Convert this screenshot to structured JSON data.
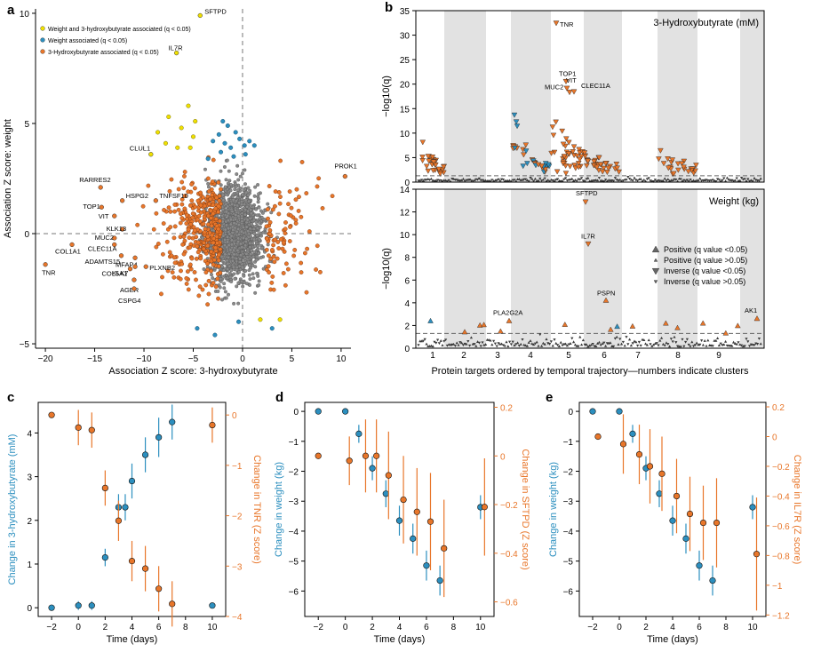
{
  "panels": [
    "a",
    "b",
    "c",
    "d",
    "e"
  ],
  "colors": {
    "orange": "#e8762a",
    "blue": "#2c8fbf",
    "yellow": "#f0e000",
    "grey": "#9a9a9a",
    "dark": "#404040",
    "shade": "#e2e2e2"
  },
  "chart_data": [
    {
      "id": "a",
      "type": "scatter",
      "xlabel": "Association Z score: 3-hydroxybutyrate",
      "ylabel": "Association Z score: weight",
      "xlim": [
        -21,
        11
      ],
      "ylim": [
        -5.2,
        10.2
      ],
      "xticks": [
        -20,
        -15,
        -10,
        -5,
        0,
        5,
        10
      ],
      "yticks": [
        -5,
        0,
        5,
        10
      ],
      "reference_lines": {
        "x": 0,
        "y": 0
      },
      "legend": [
        "Weight and 3-hydroxybutyrate associated (q < 0.05)",
        "Weight associated (q < 0.05)",
        "3-Hydroxybutyrate associated (q < 0.05)"
      ],
      "labeled_points": [
        {
          "label": "SFTPD",
          "x": -4.3,
          "y": 9.9,
          "group": "both"
        },
        {
          "label": "IL7R",
          "x": -6.7,
          "y": 8.2,
          "group": "both"
        },
        {
          "label": "CLUL1",
          "x": -9.3,
          "y": 3.6,
          "group": "both"
        },
        {
          "label": "PROK1",
          "x": 10.4,
          "y": 2.6,
          "group": "hydroxy"
        },
        {
          "label": "RARRES2",
          "x": -14.4,
          "y": 2.1,
          "group": "hydroxy"
        },
        {
          "label": "HSPG2",
          "x": -12.2,
          "y": 1.5,
          "group": "hydroxy"
        },
        {
          "label": "TNFSF10",
          "x": -8.8,
          "y": 1.5,
          "group": "hydroxy"
        },
        {
          "label": "TOP1",
          "x": -14.3,
          "y": 1.2,
          "group": "hydroxy"
        },
        {
          "label": "VIT",
          "x": -13.0,
          "y": 0.8,
          "group": "hydroxy"
        },
        {
          "label": "KLK13",
          "x": -12.2,
          "y": 0.2,
          "group": "hydroxy"
        },
        {
          "label": "MUC2",
          "x": -13.0,
          "y": -0.2,
          "group": "hydroxy"
        },
        {
          "label": "CLEC11A",
          "x": -13.0,
          "y": -0.5,
          "group": "hydroxy"
        },
        {
          "label": "COL1A1",
          "x": -17.3,
          "y": -0.5,
          "group": "hydroxy"
        },
        {
          "label": "ADAMTS15",
          "x": -12.3,
          "y": -1.0,
          "group": "hydroxy"
        },
        {
          "label": "MFAP4",
          "x": -10.9,
          "y": -1.1,
          "group": "hydroxy"
        },
        {
          "label": "TNR",
          "x": -20.0,
          "y": -1.4,
          "group": "hydroxy"
        },
        {
          "label": "KLK7",
          "x": -10.9,
          "y": -1.5,
          "group": "hydroxy"
        },
        {
          "label": "PLXNB2",
          "x": -9.8,
          "y": -1.5,
          "group": "hydroxy"
        },
        {
          "label": "COL5A1",
          "x": -11.4,
          "y": -1.6,
          "group": "hydroxy"
        },
        {
          "label": "AGER",
          "x": -11.0,
          "y": -2.1,
          "group": "hydroxy"
        },
        {
          "label": "CSPG4",
          "x": -11.0,
          "y": -2.5,
          "group": "hydroxy"
        }
      ]
    },
    {
      "id": "b",
      "type": "scatter",
      "xlabel": "Protein targets ordered by temporal trajectory—numbers indicate clusters",
      "clusters": [
        "1",
        "2",
        "3",
        "4",
        "5",
        "6",
        "7",
        "8",
        "9"
      ],
      "legend": [
        "Positive (q value <0.05)",
        "Positive (q value >0.05)",
        "Inverse (q value <0.05)",
        "Inverse (q value >0.05)"
      ],
      "subplots": [
        {
          "title": "3-Hydroxybutyrate (mM)",
          "ylabel": "−log10(q)",
          "ylim": [
            0,
            35
          ],
          "yticks": [
            0,
            5,
            10,
            15,
            20,
            25,
            30,
            35
          ],
          "labeled_points": [
            {
              "label": "TNR",
              "y": 32.5
            },
            {
              "label": "TOP1",
              "y": 20.6
            },
            {
              "label": "VIT",
              "y": 19.2
            },
            {
              "label": "MUC2",
              "y": 18.4
            },
            {
              "label": "CLEC11A",
              "y": 18.5
            }
          ]
        },
        {
          "title": "Weight (kg)",
          "ylabel": "−log10(q)",
          "ylim": [
            0,
            14
          ],
          "yticks": [
            0,
            2,
            4,
            6,
            8,
            10,
            12,
            14
          ],
          "labeled_points": [
            {
              "label": "SFTPD",
              "y": 12.9
            },
            {
              "label": "IL7R",
              "y": 9.2
            },
            {
              "label": "PSPN",
              "y": 4.2
            },
            {
              "label": "PLA2G2A",
              "y": 2.4
            },
            {
              "label": "AK1",
              "y": 2.6
            }
          ]
        }
      ]
    },
    {
      "id": "c",
      "type": "scatter",
      "xlabel": "Time (days)",
      "ylabel_left": "Change in 3-hydroxybutyrate (mM)",
      "ylabel_right": "Change in TNR (Z score)",
      "xticks": [
        -2,
        0,
        2,
        4,
        6,
        8,
        10
      ],
      "yticks_left": [
        0,
        1,
        2,
        3,
        4
      ],
      "yticks_right": [
        0,
        -1,
        -2,
        -3,
        -4
      ],
      "left_series": {
        "x": [
          -2,
          0,
          1,
          2,
          3,
          3.5,
          4,
          5,
          6,
          7,
          10
        ],
        "y": [
          0,
          0.05,
          0.05,
          1.15,
          2.3,
          2.3,
          2.9,
          3.5,
          3.9,
          4.25,
          0.05
        ],
        "err": [
          0,
          0.1,
          0.1,
          0.2,
          0.3,
          0.3,
          0.4,
          0.4,
          0.45,
          0.4,
          0.05
        ]
      },
      "right_series": {
        "x": [
          -2,
          0,
          1,
          2,
          3,
          4,
          5,
          6,
          7,
          10
        ],
        "y": [
          0,
          -0.25,
          -0.3,
          -1.45,
          -2.1,
          -2.9,
          -3.05,
          -3.45,
          -3.75,
          -0.2
        ],
        "err": [
          0,
          0.35,
          0.35,
          0.35,
          0.4,
          0.4,
          0.45,
          0.45,
          0.45,
          0.35
        ]
      }
    },
    {
      "id": "d",
      "type": "scatter",
      "xlabel": "Time (days)",
      "ylabel_left": "Change in weight (kg)",
      "ylabel_right": "Change in SFTPD (Z score)",
      "xticks": [
        -2,
        0,
        2,
        4,
        6,
        8,
        10
      ],
      "yticks_left": [
        0,
        -1,
        -2,
        -3,
        -4,
        -5,
        -6
      ],
      "yticks_right": [
        0.2,
        0,
        -0.2,
        -0.4,
        -0.6
      ],
      "left_series": {
        "x": [
          -2,
          0,
          1,
          2,
          3,
          4,
          5,
          6,
          7,
          10
        ],
        "y": [
          0,
          0,
          -0.75,
          -1.9,
          -2.75,
          -3.65,
          -4.25,
          -5.15,
          -5.65,
          -3.2
        ],
        "err": [
          0,
          0,
          0.3,
          0.4,
          0.45,
          0.5,
          0.5,
          0.5,
          0.5,
          0.4
        ]
      },
      "right_series": {
        "x": [
          -2,
          0.3,
          1.5,
          2.3,
          3.2,
          4.3,
          5.3,
          6.3,
          7.3,
          10.3
        ],
        "y": [
          0,
          -0.02,
          0,
          0,
          -0.08,
          -0.18,
          -0.23,
          -0.27,
          -0.38,
          -0.21
        ],
        "err": [
          0,
          0.1,
          0.15,
          0.15,
          0.18,
          0.18,
          0.18,
          0.2,
          0.2,
          0.2
        ]
      }
    },
    {
      "id": "e",
      "type": "scatter",
      "xlabel": "Time (days)",
      "ylabel_left": "Change in weight (kg)",
      "ylabel_right": "Change in IL7R (Z score)",
      "xticks": [
        -2,
        0,
        2,
        4,
        6,
        8,
        10
      ],
      "yticks_left": [
        0,
        -1,
        -2,
        -3,
        -4,
        -5,
        -6
      ],
      "yticks_right": [
        0.2,
        0,
        -0.2,
        -0.4,
        -0.6,
        -0.8,
        -1.0,
        -1.2
      ],
      "left_series": {
        "x": [
          -2,
          0,
          1,
          2,
          3,
          4,
          5,
          6,
          7,
          10
        ],
        "y": [
          0,
          0,
          -0.75,
          -1.9,
          -2.75,
          -3.65,
          -4.25,
          -5.15,
          -5.65,
          -3.2
        ],
        "err": [
          0,
          0,
          0.3,
          0.4,
          0.45,
          0.5,
          0.5,
          0.5,
          0.5,
          0.4
        ]
      },
      "right_series": {
        "x": [
          -1.6,
          0.3,
          1.5,
          2.3,
          3.2,
          4.3,
          5.3,
          6.3,
          7.3,
          10.3
        ],
        "y": [
          0,
          -0.05,
          -0.12,
          -0.2,
          -0.25,
          -0.4,
          -0.52,
          -0.58,
          -0.58,
          -0.79
        ],
        "err": [
          0,
          0.2,
          0.2,
          0.25,
          0.25,
          0.25,
          0.25,
          0.25,
          0.3,
          0.38
        ]
      }
    }
  ]
}
